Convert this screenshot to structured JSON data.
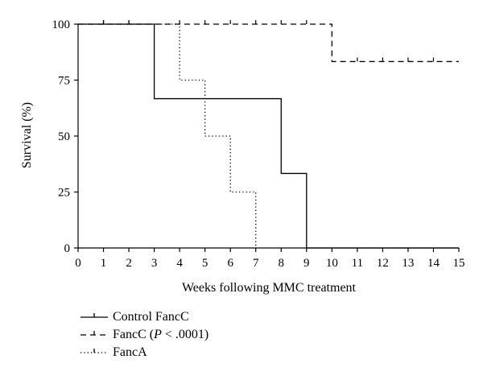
{
  "chart_data": {
    "type": "line",
    "step": true,
    "xlabel": "Weeks following MMC treatment",
    "ylabel": "Survival (%)",
    "xlim": [
      0,
      15
    ],
    "ylim": [
      0,
      100
    ],
    "xticks": [
      "0",
      "1",
      "2",
      "3",
      "4",
      "5",
      "6",
      "7",
      "8",
      "9",
      "10",
      "11",
      "12",
      "13",
      "14",
      "15"
    ],
    "yticks": [
      "0",
      "25",
      "50",
      "75",
      "100"
    ],
    "grid": false,
    "legend_position": "bottom-left",
    "series": [
      {
        "name": "Control FancC",
        "line_style": "solid",
        "x": [
          0,
          3,
          3,
          8,
          8,
          9,
          9,
          15
        ],
        "y": [
          100,
          100,
          66.7,
          66.7,
          33.3,
          33.3,
          0,
          0
        ],
        "censor_x": [
          1
        ],
        "censor_y": [
          100
        ]
      },
      {
        "name": "FancC (P < .0001)",
        "line_style": "dashed",
        "x": [
          0,
          10,
          10,
          15
        ],
        "y": [
          100,
          100,
          83.3,
          83.3
        ],
        "censor_x": [
          1,
          2,
          4,
          5,
          6,
          7,
          8,
          9,
          11,
          12,
          13,
          14
        ],
        "censor_y": [
          100,
          100,
          100,
          100,
          100,
          100,
          100,
          100,
          83.3,
          83.3,
          83.3,
          83.3
        ]
      },
      {
        "name": "FancA",
        "line_style": "dotted",
        "x": [
          0,
          4,
          4,
          5,
          5,
          6,
          6,
          7,
          7
        ],
        "y": [
          100,
          100,
          75,
          75,
          50,
          50,
          25,
          25,
          0
        ],
        "censor_x": [
          1,
          2
        ],
        "censor_y": [
          100,
          100
        ]
      }
    ]
  },
  "legend": {
    "items": [
      {
        "label": "Control FancC"
      },
      {
        "label_prefix": "FancC (",
        "label_italic": "P",
        "label_suffix": " < .0001)"
      },
      {
        "label": "FancA"
      }
    ]
  }
}
